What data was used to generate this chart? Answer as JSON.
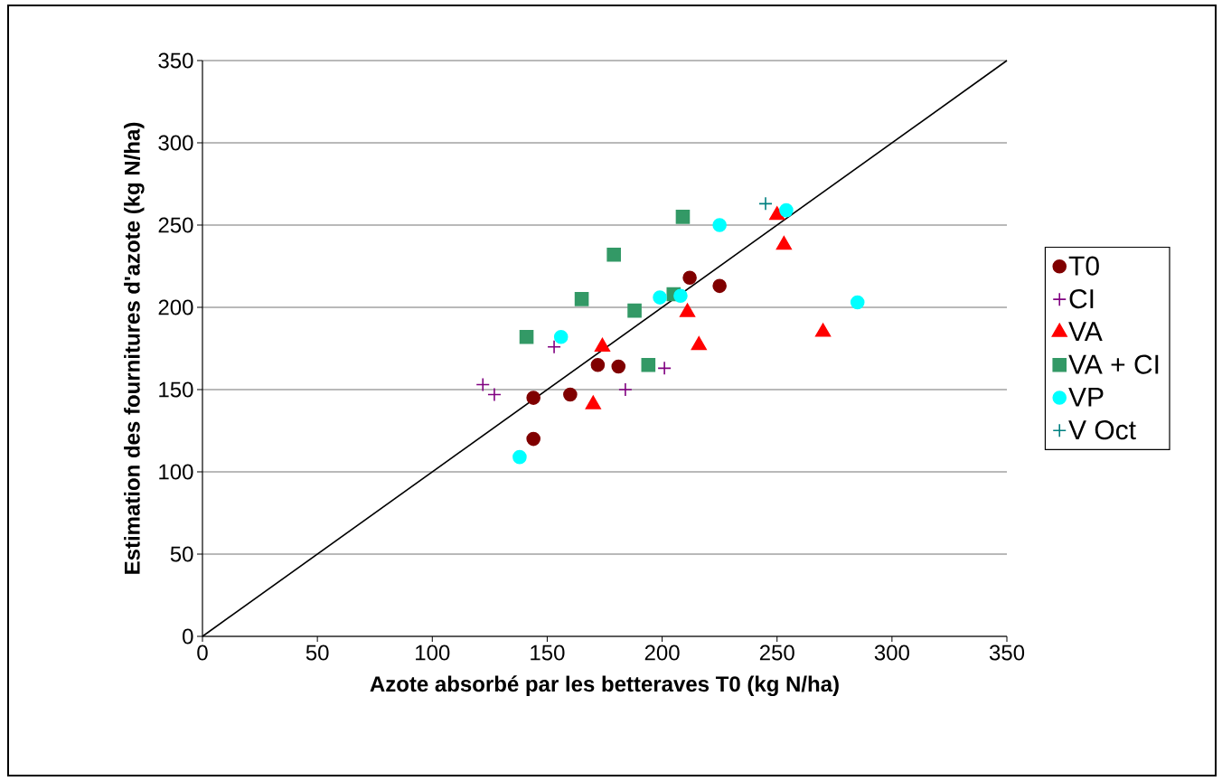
{
  "chart_data": {
    "type": "scatter",
    "xlabel": "Azote absorbé par les betteraves T0 (kg N/ha)",
    "ylabel": "Estimation des fournitures d'azote (kg N/ha)",
    "xlim": [
      0,
      350
    ],
    "ylim": [
      0,
      350
    ],
    "xticks": [
      0,
      50,
      100,
      150,
      200,
      250,
      300,
      350
    ],
    "yticks": [
      0,
      50,
      100,
      150,
      200,
      250,
      300,
      350
    ],
    "grid": "y",
    "legend": "right",
    "series": [
      {
        "name": "T0",
        "color": "#800000",
        "marker": "circle",
        "x": [
          144,
          144,
          160,
          172,
          181,
          212,
          225
        ],
        "values": [
          145,
          120,
          147,
          165,
          164,
          218,
          213
        ]
      },
      {
        "name": "CI",
        "color": "#800080",
        "marker": "cross",
        "x": [
          122,
          127,
          153,
          184,
          201
        ],
        "values": [
          153,
          147,
          176,
          150,
          163
        ]
      },
      {
        "name": "VA",
        "color": "#ff0000",
        "marker": "triangle",
        "x": [
          170,
          174,
          211,
          216,
          250,
          253,
          270
        ],
        "values": [
          141,
          176,
          197,
          177,
          256,
          238,
          185
        ]
      },
      {
        "name": "VA + CI",
        "color": "#339966",
        "marker": "square",
        "x": [
          141,
          165,
          179,
          188,
          194,
          205,
          209
        ],
        "values": [
          182,
          205,
          232,
          198,
          165,
          208,
          255
        ]
      },
      {
        "name": "VP",
        "color": "#00ffff",
        "marker": "circle",
        "x": [
          138,
          156,
          199,
          208,
          225,
          254,
          285
        ],
        "values": [
          109,
          182,
          206,
          207,
          250,
          259,
          203
        ]
      },
      {
        "name": "V Oct",
        "color": "#008080",
        "marker": "cross",
        "x": [
          245
        ],
        "values": [
          263
        ]
      },
      {
        "type": "line",
        "color": "#000000",
        "marker": "none",
        "x": [
          0,
          350
        ],
        "values": [
          0,
          350
        ]
      }
    ]
  }
}
